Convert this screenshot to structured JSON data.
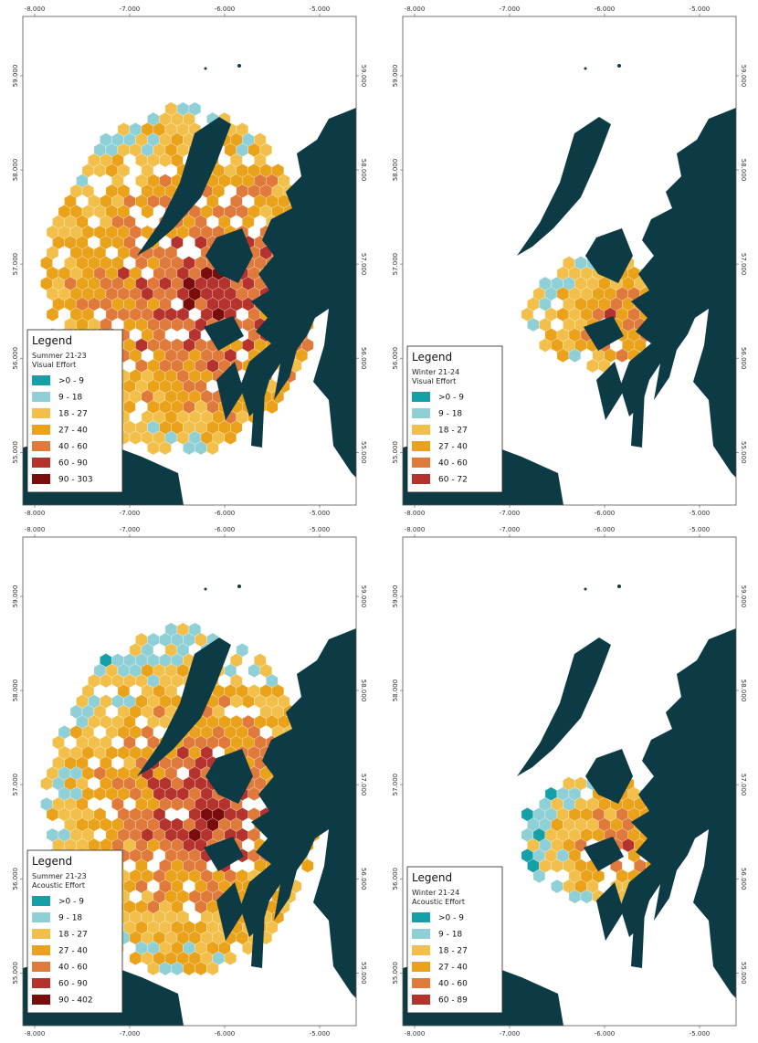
{
  "map": {
    "xlim": [
      -8.125,
      -4.615
    ],
    "ylim": [
      54.44,
      59.63
    ],
    "xticks": [
      {
        "value": -8,
        "label": "-8.000"
      },
      {
        "value": -7,
        "label": "-7.000"
      },
      {
        "value": -6,
        "label": "-6.000"
      },
      {
        "value": -5,
        "label": "-5.000"
      }
    ],
    "yticks": [
      {
        "value": 55,
        "label": "55.000"
      },
      {
        "value": 56,
        "label": "56.000"
      },
      {
        "value": 57,
        "label": "57.000"
      },
      {
        "value": 58,
        "label": "58.000"
      },
      {
        "value": 59,
        "label": "59.000"
      }
    ]
  },
  "panels": [
    {
      "legend": {
        "title": "Legend",
        "subtitle": [
          "Summer 21-23",
          "Visual Effort"
        ],
        "classes": [
          {
            "label": ">0 - 9",
            "color": "#15a0a8"
          },
          {
            "label": "9 - 18",
            "color": "#8fd0d6"
          },
          {
            "label": "18 - 27",
            "color": "#f2c04a"
          },
          {
            "label": "27 - 40",
            "color": "#e9a21a"
          },
          {
            "label": "40 - 60",
            "color": "#e07a3a"
          },
          {
            "label": "60 - 90",
            "color": "#b5322d"
          },
          {
            "label": "90 - 303",
            "color": "#7a0c0c"
          }
        ]
      }
    },
    {
      "legend": {
        "title": "Legend",
        "subtitle": [
          "Winter 21-24",
          "Visual Effort"
        ],
        "classes": [
          {
            "label": ">0 - 9",
            "color": "#15a0a8"
          },
          {
            "label": "9 - 18",
            "color": "#8fd0d6"
          },
          {
            "label": "18 - 27",
            "color": "#f2c04a"
          },
          {
            "label": "27 - 40",
            "color": "#e9a21a"
          },
          {
            "label": "40 - 60",
            "color": "#e07a3a"
          },
          {
            "label": "60 - 72",
            "color": "#b5322d"
          }
        ]
      }
    },
    {
      "legend": {
        "title": "Legend",
        "subtitle": [
          "Summer 21-23",
          "Acoustic Effort"
        ],
        "classes": [
          {
            "label": ">0 - 9",
            "color": "#15a0a8"
          },
          {
            "label": "9 - 18",
            "color": "#8fd0d6"
          },
          {
            "label": "18 - 27",
            "color": "#f2c04a"
          },
          {
            "label": "27 - 40",
            "color": "#e9a21a"
          },
          {
            "label": "40 - 60",
            "color": "#e07a3a"
          },
          {
            "label": "60 - 90",
            "color": "#b5322d"
          },
          {
            "label": "90 - 402",
            "color": "#7a0c0c"
          }
        ]
      }
    },
    {
      "legend": {
        "title": "Legend",
        "subtitle": [
          "Winter 21-24",
          "Acoustic Effort"
        ],
        "classes": [
          {
            "label": ">0 - 9",
            "color": "#15a0a8"
          },
          {
            "label": "9 - 18",
            "color": "#8fd0d6"
          },
          {
            "label": "18 - 27",
            "color": "#f2c04a"
          },
          {
            "label": "27 - 40",
            "color": "#e9a21a"
          },
          {
            "label": "40 - 60",
            "color": "#e07a3a"
          },
          {
            "label": "60 - 89",
            "color": "#b5322d"
          }
        ]
      }
    }
  ]
}
